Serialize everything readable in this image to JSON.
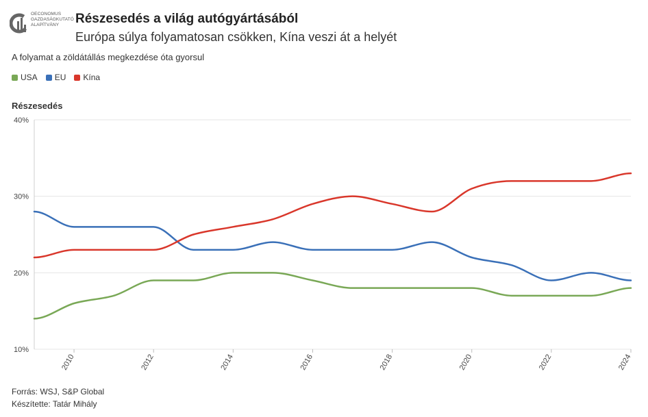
{
  "logo": {
    "icon": "chart-bars-logo-icon",
    "lines": [
      "OECONOMUS",
      "GAZDASÁGKUTATÓ",
      "ALAPÍTVÁNY"
    ]
  },
  "title": "Részesedés a világ autógyártásából",
  "subtitle": "Európa súlya folyamatosan csökken, Kína veszi át a helyét",
  "note": "A folyamat a zöldátállás megkezdése óta gyorsul",
  "footer": {
    "source": "Forrás: WSJ, S&P Global",
    "author": "Készítette: Tatár Mihály"
  },
  "chart_data": {
    "type": "line",
    "ylabel": "Részesedés",
    "ylim": [
      10,
      40
    ],
    "xlim": [
      2009,
      2024
    ],
    "yticks": [
      10,
      20,
      30,
      40
    ],
    "ytick_labels": [
      "10%",
      "20%",
      "30%",
      "40%"
    ],
    "xticks": [
      2010,
      2012,
      2014,
      2016,
      2018,
      2020,
      2022,
      2024
    ],
    "grid": "horizontal",
    "legend_position": "top-left",
    "x": [
      2009,
      2010,
      2011,
      2012,
      2013,
      2014,
      2015,
      2016,
      2017,
      2018,
      2019,
      2020,
      2021,
      2022,
      2023,
      2024
    ],
    "series": [
      {
        "name": "USA",
        "color": "#79a856",
        "values": [
          14,
          16,
          17,
          19,
          19,
          20,
          20,
          19,
          18,
          18,
          18,
          18,
          17,
          17,
          17,
          18
        ]
      },
      {
        "name": "EU",
        "color": "#3a70b8",
        "values": [
          28,
          26,
          26,
          26,
          23,
          23,
          24,
          23,
          23,
          23,
          24,
          22,
          21,
          19,
          20,
          19
        ]
      },
      {
        "name": "Kína",
        "color": "#d9372b",
        "values": [
          22,
          23,
          23,
          23,
          25,
          26,
          27,
          29,
          30,
          29,
          28,
          31,
          32,
          32,
          32,
          33
        ]
      }
    ]
  }
}
